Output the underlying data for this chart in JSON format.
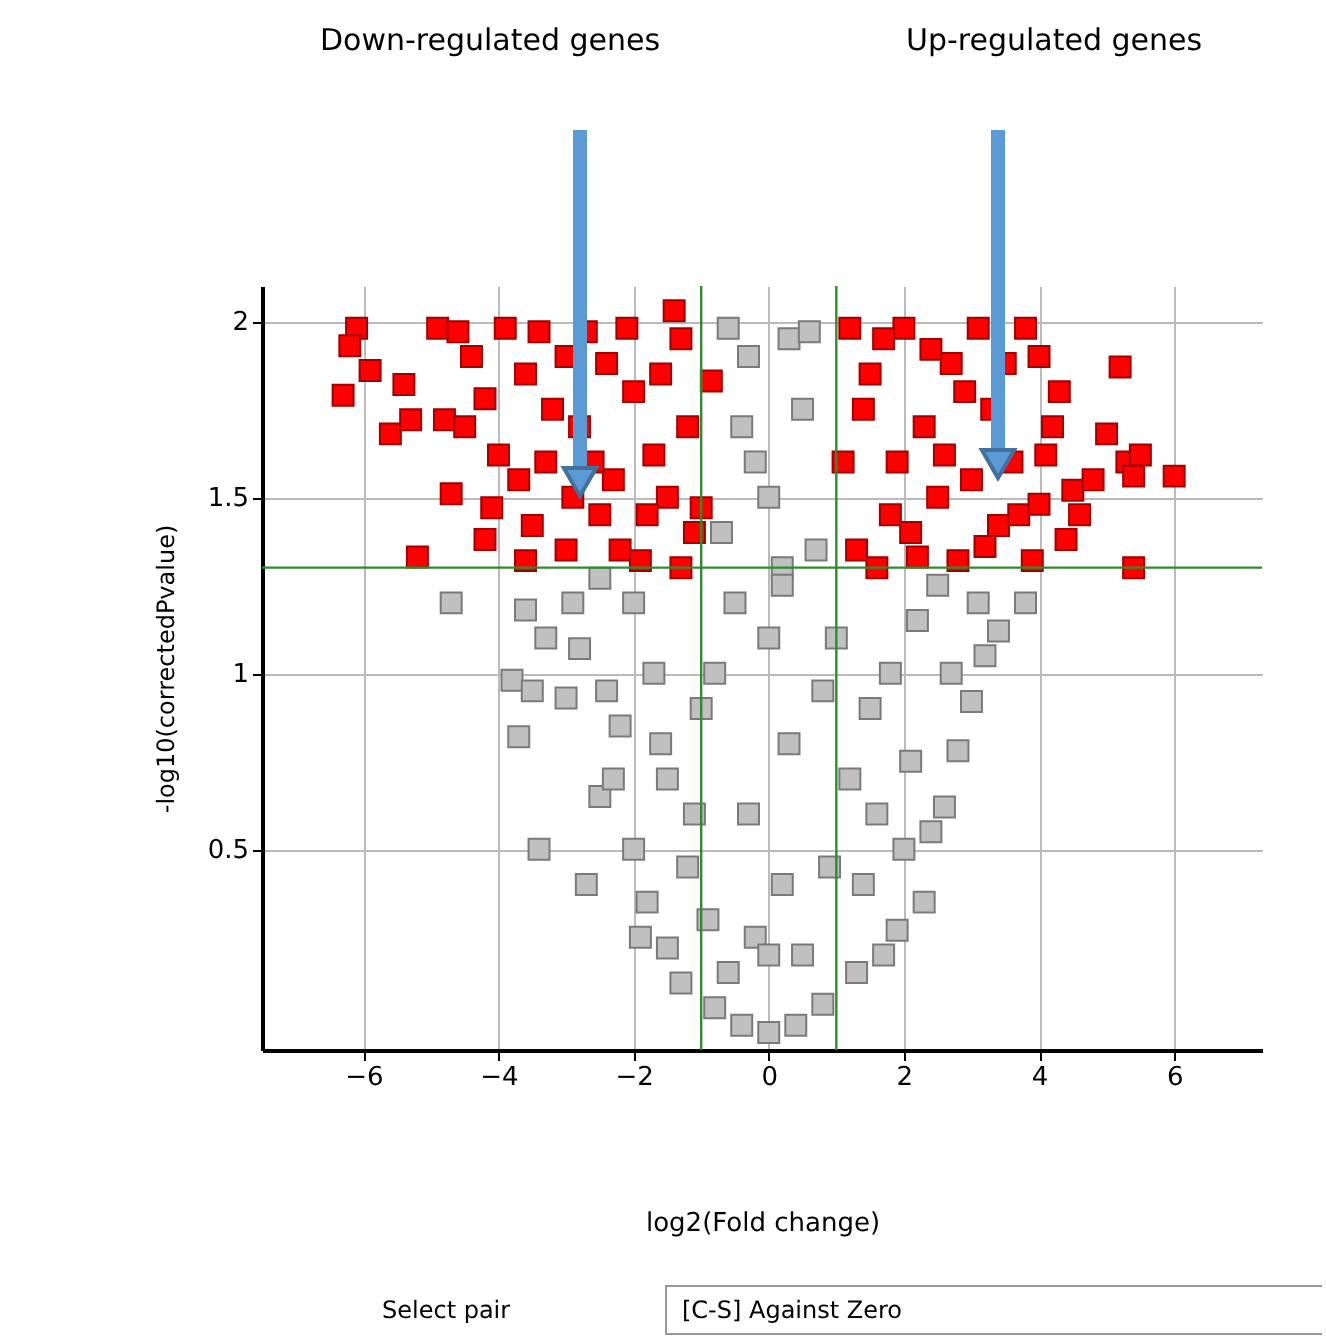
{
  "chart_data": {
    "type": "scatter",
    "xlabel": "log2(Fold change)",
    "ylabel": "-log10(correctedPvalue)",
    "xlim": [
      -7.5,
      7.3
    ],
    "ylim": [
      -0.07,
      2.1
    ],
    "xticks": [
      -6,
      -4,
      -2,
      0,
      2,
      4,
      6
    ],
    "yticks": [
      0.5,
      1,
      1.5,
      2
    ],
    "grid": true,
    "marker": "square",
    "series": [
      {
        "color": "#c0c0c0",
        "x": [
          -4.7,
          -3.6,
          -3.3,
          -3.8,
          -3.5,
          -3.0,
          -3.7,
          -3.4,
          -2.5,
          -2.0,
          -1.8,
          -1.5,
          -2.7,
          -1.9,
          -1.3,
          -0.8,
          -0.4,
          0,
          0.4,
          0.8,
          1.3,
          1.7,
          1.9,
          2.3,
          2.0,
          2.4,
          2.6,
          2.8,
          3.0,
          3.2,
          3.4,
          3.1,
          3.8,
          2.5,
          -2.5,
          -2.8,
          -2.2,
          -1.5,
          -1.0,
          -0.5,
          0,
          -0.3,
          0.3,
          -0.6,
          0.6,
          -0.4,
          0.5,
          -0.7,
          0.7,
          0,
          0.3,
          -0.3,
          0.2,
          -0.2,
          0.5,
          -0.6,
          1.0,
          1.5,
          1.2,
          -1.2,
          0.9,
          1.8,
          2.2,
          -2.0,
          -1.7,
          -2.4,
          1.6,
          -1.6,
          0,
          -0.9,
          2.1,
          -2.3,
          1.4,
          -1.1,
          0.8,
          -0.8,
          2.7,
          -2.9,
          0.2,
          -0.2,
          0.2
        ],
        "values": [
          1.2,
          1.18,
          1.1,
          0.98,
          0.95,
          0.93,
          0.82,
          0.5,
          0.65,
          0.5,
          0.35,
          0.22,
          0.4,
          0.25,
          0.12,
          0.05,
          0.0,
          -0.02,
          0.0,
          0.06,
          0.15,
          0.2,
          0.27,
          0.35,
          0.5,
          0.55,
          0.62,
          0.78,
          0.92,
          1.05,
          1.12,
          1.2,
          1.2,
          1.25,
          1.27,
          1.07,
          0.85,
          0.7,
          0.9,
          1.2,
          1.5,
          1.9,
          1.95,
          1.98,
          1.97,
          1.7,
          1.75,
          1.4,
          1.35,
          1.1,
          0.8,
          0.6,
          0.4,
          0.25,
          0.2,
          0.15,
          1.1,
          0.9,
          0.7,
          0.45,
          0.45,
          1.0,
          1.15,
          1.2,
          1.0,
          0.95,
          0.6,
          0.8,
          0.2,
          0.3,
          0.75,
          0.7,
          0.4,
          0.6,
          0.95,
          1.0,
          1.0,
          1.2,
          1.3,
          1.6,
          1.25
        ]
      },
      {
        "color": "#ff0000",
        "x": [
          -6.1,
          -6.2,
          -5.9,
          -6.3,
          -5.4,
          -5.6,
          -5.3,
          -5.2,
          -4.7,
          -4.2,
          -4.1,
          -4.9,
          -4.6,
          -4.4,
          -4.8,
          -4.5,
          -4.0,
          -3.7,
          -3.5,
          -3.6,
          -3.2,
          -3.0,
          -2.7,
          -2.5,
          -2.2,
          -2.0,
          -1.7,
          -1.5,
          -1.3,
          -1.4,
          -1.1,
          -0.85,
          -1.0,
          -3.9,
          -3.3,
          -2.8,
          -2.3,
          -1.9,
          -1.6,
          -1.2,
          -3.0,
          -2.6,
          -2.1,
          -1.8,
          -3.6,
          -4.2,
          -3.4,
          -2.4,
          -1.3,
          -2.9,
          1.2,
          1.5,
          1.1,
          1.3,
          1.8,
          2.0,
          2.3,
          2.5,
          2.8,
          2.7,
          3.1,
          3.3,
          3.6,
          3.4,
          3.2,
          3.8,
          4.0,
          4.2,
          4.3,
          4.5,
          4.6,
          3.7,
          4.4,
          5.2,
          5.0,
          5.3,
          5.5,
          5.4,
          6.0,
          5.4,
          1.6,
          2.2,
          1.9,
          2.6,
          3.0,
          1.4,
          2.4,
          3.5,
          4.1,
          3.9,
          2.1,
          1.7,
          2.9,
          4.8,
          4.0
        ],
        "values": [
          1.98,
          1.93,
          1.86,
          1.79,
          1.82,
          1.68,
          1.72,
          1.33,
          1.51,
          1.38,
          1.47,
          1.98,
          1.97,
          1.9,
          1.72,
          1.7,
          1.62,
          1.55,
          1.42,
          1.32,
          1.75,
          1.9,
          1.97,
          1.45,
          1.35,
          1.8,
          1.62,
          1.5,
          1.95,
          2.03,
          1.4,
          1.83,
          1.47,
          1.98,
          1.6,
          1.7,
          1.55,
          1.32,
          1.85,
          1.7,
          1.35,
          1.6,
          1.98,
          1.45,
          1.85,
          1.78,
          1.97,
          1.88,
          1.3,
          1.5,
          1.98,
          1.85,
          1.6,
          1.35,
          1.45,
          1.98,
          1.7,
          1.5,
          1.32,
          1.88,
          1.98,
          1.75,
          1.6,
          1.42,
          1.36,
          1.98,
          1.9,
          1.7,
          1.8,
          1.52,
          1.45,
          1.45,
          1.38,
          1.87,
          1.68,
          1.6,
          1.62,
          1.56,
          1.56,
          1.3,
          1.3,
          1.33,
          1.6,
          1.62,
          1.55,
          1.75,
          1.92,
          1.88,
          1.62,
          1.32,
          1.4,
          1.95,
          1.8,
          1.55,
          1.48
        ]
      }
    ],
    "ref_lines": [
      {
        "axis": "y",
        "value": 1.3,
        "color": "#2e8b2e"
      },
      {
        "axis": "x",
        "value": -1,
        "color": "#2e8b2e"
      },
      {
        "axis": "x",
        "value": 1,
        "color": "#2e8b2e"
      }
    ],
    "annotations": [
      "Down-regulated genes",
      "Up-regulated genes",
      "Select pair",
      "[C-S] Against Zero"
    ]
  }
}
